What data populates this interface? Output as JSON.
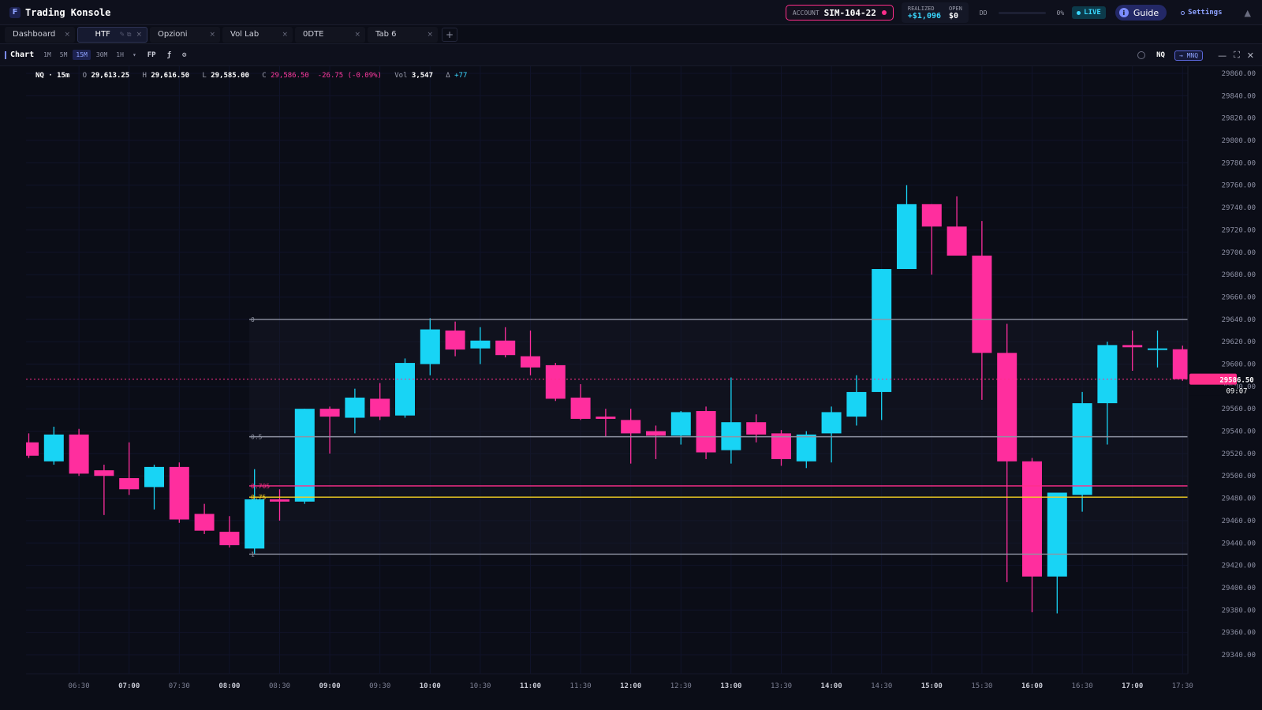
{
  "app": {
    "title": "Trading Konsole"
  },
  "header": {
    "account_label": "ACCOUNT",
    "account_value": "SIM-104-22",
    "realized_label": "REALIZED",
    "realized_value": "+$1,096",
    "open_label": "OPEN",
    "open_value": "$0",
    "dd_label": "DD",
    "dd_value": "0%",
    "live_label": "LIVE",
    "guide_label": "Guide",
    "settings_label": "Settings"
  },
  "tabs": [
    {
      "label": "Dashboard",
      "active": false
    },
    {
      "label": "HTF",
      "active": true
    },
    {
      "label": "Opzioni",
      "active": false
    },
    {
      "label": "Vol Lab",
      "active": false
    },
    {
      "label": "0DTE",
      "active": false
    },
    {
      "label": "Tab 6",
      "active": false
    }
  ],
  "toolbar": {
    "chart_label": "Chart",
    "timeframes": [
      "1M",
      "5M",
      "15M",
      "30M",
      "1H"
    ],
    "active_timeframe": "15M",
    "fp_label": "FP",
    "fx_label": "ƒ",
    "symbol": "NQ",
    "linked_symbol": "→ MNQ"
  },
  "ohlc": {
    "symbol_tf": "NQ · 15m",
    "open": "29,613.25",
    "high": "29,616.50",
    "low": "29,585.00",
    "close": "29,586.50",
    "change": "-26.75 (-0.09%)",
    "volume": "3,547",
    "delta": "+77"
  },
  "chart_data": {
    "type": "candlestick",
    "symbol": "NQ",
    "timeframe": "15m",
    "ylim": [
      29330,
      29865
    ],
    "price_ticks": [
      29860,
      29840,
      29820,
      29800,
      29780,
      29760,
      29740,
      29720,
      29700,
      29680,
      29660,
      29640,
      29620,
      29600,
      29580,
      29560,
      29540,
      29520,
      29500,
      29480,
      29460,
      29440,
      29420,
      29400,
      29380,
      29360,
      29340
    ],
    "time_labels": [
      "06:30",
      "07:00",
      "07:30",
      "08:00",
      "08:30",
      "09:00",
      "09:30",
      "10:00",
      "10:30",
      "11:00",
      "11:30",
      "12:00",
      "12:30",
      "13:00",
      "13:30",
      "14:00",
      "14:30",
      "15:00",
      "15:30",
      "16:00",
      "16:30",
      "17:00",
      "17:30"
    ],
    "candles": [
      {
        "t": "06:00",
        "o": 29530,
        "h": 29538,
        "l": 29516,
        "c": 29518
      },
      {
        "t": "06:15",
        "o": 29513,
        "h": 29544,
        "l": 29510,
        "c": 29537
      },
      {
        "t": "06:30",
        "o": 29537,
        "h": 29542,
        "l": 29500,
        "c": 29502
      },
      {
        "t": "06:45",
        "o": 29505,
        "h": 29510,
        "l": 29465,
        "c": 29500
      },
      {
        "t": "07:00",
        "o": 29498,
        "h": 29530,
        "l": 29483,
        "c": 29488
      },
      {
        "t": "07:15",
        "o": 29490,
        "h": 29510,
        "l": 29470,
        "c": 29508
      },
      {
        "t": "07:30",
        "o": 29508,
        "h": 29512,
        "l": 29458,
        "c": 29461
      },
      {
        "t": "07:45",
        "o": 29466,
        "h": 29475,
        "l": 29448,
        "c": 29451
      },
      {
        "t": "08:00",
        "o": 29450,
        "h": 29464,
        "l": 29436,
        "c": 29438
      },
      {
        "t": "08:15",
        "o": 29435,
        "h": 29506,
        "l": 29430,
        "c": 29479
      },
      {
        "t": "08:30",
        "o": 29479,
        "h": 29488,
        "l": 29460,
        "c": 29477
      },
      {
        "t": "08:45",
        "o": 29477,
        "h": 29560,
        "l": 29475,
        "c": 29560
      },
      {
        "t": "09:00",
        "o": 29560,
        "h": 29562,
        "l": 29520,
        "c": 29553
      },
      {
        "t": "09:15",
        "o": 29552,
        "h": 29578,
        "l": 29538,
        "c": 29570
      },
      {
        "t": "09:30",
        "o": 29569,
        "h": 29583,
        "l": 29550,
        "c": 29553
      },
      {
        "t": "09:45",
        "o": 29554,
        "h": 29605,
        "l": 29552,
        "c": 29601
      },
      {
        "t": "10:00",
        "o": 29600,
        "h": 29641,
        "l": 29590,
        "c": 29631
      },
      {
        "t": "10:15",
        "o": 29630,
        "h": 29638,
        "l": 29607,
        "c": 29613
      },
      {
        "t": "10:30",
        "o": 29614,
        "h": 29633,
        "l": 29600,
        "c": 29621
      },
      {
        "t": "10:45",
        "o": 29621,
        "h": 29633,
        "l": 29606,
        "c": 29608
      },
      {
        "t": "11:00",
        "o": 29607,
        "h": 29630,
        "l": 29590,
        "c": 29597
      },
      {
        "t": "11:15",
        "o": 29599,
        "h": 29601,
        "l": 29567,
        "c": 29569
      },
      {
        "t": "11:30",
        "o": 29570,
        "h": 29582,
        "l": 29550,
        "c": 29551
      },
      {
        "t": "11:45",
        "o": 29553,
        "h": 29560,
        "l": 29535,
        "c": 29551
      },
      {
        "t": "12:00",
        "o": 29550,
        "h": 29560,
        "l": 29511,
        "c": 29538
      },
      {
        "t": "12:15",
        "o": 29540,
        "h": 29545,
        "l": 29515,
        "c": 29536
      },
      {
        "t": "12:30",
        "o": 29536,
        "h": 29558,
        "l": 29528,
        "c": 29557
      },
      {
        "t": "12:45",
        "o": 29558,
        "h": 29562,
        "l": 29515,
        "c": 29521
      },
      {
        "t": "13:00",
        "o": 29523,
        "h": 29588,
        "l": 29511,
        "c": 29548
      },
      {
        "t": "13:15",
        "o": 29548,
        "h": 29555,
        "l": 29530,
        "c": 29537
      },
      {
        "t": "13:30",
        "o": 29538,
        "h": 29541,
        "l": 29509,
        "c": 29515
      },
      {
        "t": "13:45",
        "o": 29513,
        "h": 29540,
        "l": 29507,
        "c": 29537
      },
      {
        "t": "14:00",
        "o": 29538,
        "h": 29562,
        "l": 29512,
        "c": 29557
      },
      {
        "t": "14:15",
        "o": 29553,
        "h": 29590,
        "l": 29545,
        "c": 29575
      },
      {
        "t": "14:30",
        "o": 29575,
        "h": 29685,
        "l": 29550,
        "c": 29685
      },
      {
        "t": "14:45",
        "o": 29685,
        "h": 29760,
        "l": 29685,
        "c": 29743
      },
      {
        "t": "15:00",
        "o": 29743,
        "h": 29743,
        "l": 29680,
        "c": 29723
      },
      {
        "t": "15:15",
        "o": 29723,
        "h": 29750,
        "l": 29697,
        "c": 29697
      },
      {
        "t": "15:30",
        "o": 29697,
        "h": 29728,
        "l": 29568,
        "c": 29610
      },
      {
        "t": "15:45",
        "o": 29610,
        "h": 29636,
        "l": 29405,
        "c": 29513
      },
      {
        "t": "16:00",
        "o": 29513,
        "h": 29516,
        "l": 29378,
        "c": 29410
      },
      {
        "t": "16:15",
        "o": 29410,
        "h": 29484,
        "l": 29377,
        "c": 29485
      },
      {
        "t": "16:30",
        "o": 29483,
        "h": 29575,
        "l": 29468,
        "c": 29565
      },
      {
        "t": "16:45",
        "o": 29565,
        "h": 29620,
        "l": 29528,
        "c": 29617
      },
      {
        "t": "17:00",
        "o": 29617,
        "h": 29630,
        "l": 29594,
        "c": 29615
      },
      {
        "t": "17:15",
        "o": 29614,
        "h": 29630,
        "l": 29597,
        "c": 29614
      },
      {
        "t": "17:30",
        "o": 29613.25,
        "h": 29616.5,
        "l": 29585,
        "c": 29586.5
      }
    ],
    "fib_levels": [
      {
        "label": "0",
        "price": 29640,
        "color": "#8f93a3"
      },
      {
        "label": "0.5",
        "price": 29535,
        "color": "#8f93a3"
      },
      {
        "label": "0.705",
        "price": 29491,
        "color": "#ff2e8a"
      },
      {
        "label": "0.75",
        "price": 29481,
        "color": "#f5d020"
      },
      {
        "label": "1",
        "price": 29430,
        "color": "#8f93a3"
      }
    ],
    "last_price": {
      "label": "29586.50",
      "countdown": "09:07",
      "value": 29586.5
    },
    "colors": {
      "up": "#18d4f5",
      "down": "#ff2e9e",
      "last": "#ff2e8a",
      "background": "#0b0d17"
    }
  },
  "tools": [
    "cursor-icon",
    "trendline-icon",
    "rectangle-icon",
    "horizontal-lines-icon",
    "parallel-channel-icon",
    "path-icon",
    "text-icon",
    "arrow-icon",
    "measure-icon",
    "fib-icon",
    "pin-icon",
    "layers-icon",
    "undo-icon",
    "redo-icon"
  ]
}
